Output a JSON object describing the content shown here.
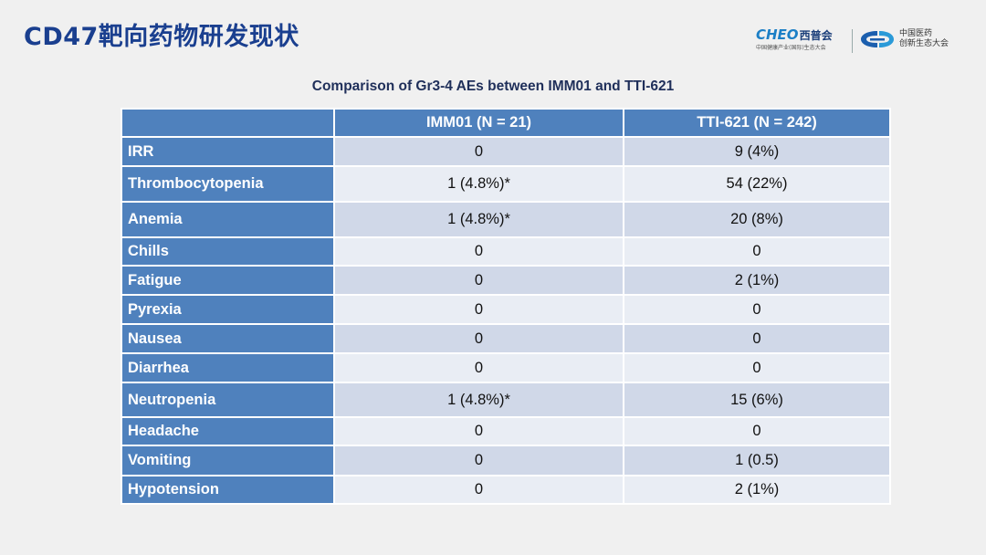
{
  "slide": {
    "title": "CD47靶向药物研发现状"
  },
  "logos": {
    "cheo": {
      "brand": "CHEO",
      "brand_cn": "西普会",
      "subtitle": "中国健康产业(国际)生态大会"
    },
    "forum": {
      "line1": "中国医药",
      "line2": "创新生态大会"
    }
  },
  "table": {
    "caption": "Comparison of Gr3-4 AEs between IMM01 and  TTI-621",
    "headers": [
      "",
      "IMM01 (N = 21)",
      "TTI-621 (N = 242)"
    ],
    "rows": [
      {
        "ae": "IRR",
        "imm01": "0",
        "tti621": "9 (4%)"
      },
      {
        "ae": "Thrombocytopenia",
        "imm01": "1 (4.8%)*",
        "tti621": "54 (22%)"
      },
      {
        "ae": "Anemia",
        "imm01": "1 (4.8%)*",
        "tti621": "20 (8%)"
      },
      {
        "ae": "Chills",
        "imm01": "0",
        "tti621": "0"
      },
      {
        "ae": "Fatigue",
        "imm01": "0",
        "tti621": "2 (1%)"
      },
      {
        "ae": "Pyrexia",
        "imm01": "0",
        "tti621": "0"
      },
      {
        "ae": "Nausea",
        "imm01": "0",
        "tti621": "0"
      },
      {
        "ae": "Diarrhea",
        "imm01": "0",
        "tti621": "0"
      },
      {
        "ae": "Neutropenia",
        "imm01": "1 (4.8%)*",
        "tti621": "15 (6%)"
      },
      {
        "ae": "Headache",
        "imm01": "0",
        "tti621": "0"
      },
      {
        "ae": "Vomiting",
        "imm01": "0",
        "tti621": "1 (0.5)"
      },
      {
        "ae": "Hypotension",
        "imm01": "0",
        "tti621": "2 (1%)"
      }
    ]
  },
  "colors": {
    "title": "#1a3f8f",
    "header_bg": "#4f81bd",
    "row_odd": "#d0d8e8",
    "row_even": "#e9edf4",
    "background": "#f0f0f0"
  }
}
